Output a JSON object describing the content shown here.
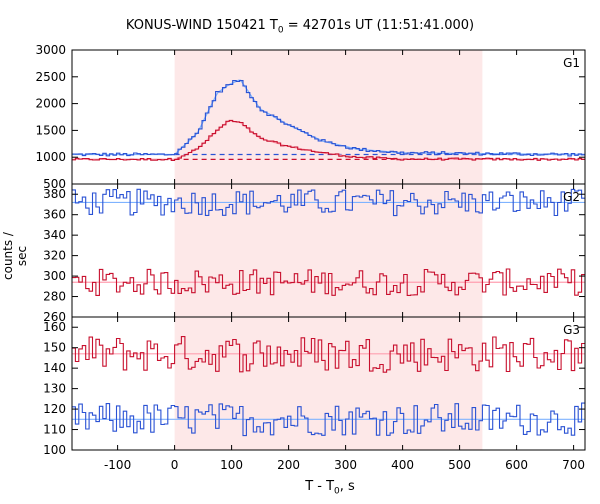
{
  "chart_data": {
    "type": "line",
    "title_main": "KONUS-WIND 150421 T",
    "title_sub": "0",
    "title_rest": " = 42701s UT (11:51:41.000)",
    "xlabel_main": "T - T",
    "xlabel_sub": "0",
    "xlabel_rest": ", s",
    "ylabel": "counts / sec",
    "xlim": [
      -180,
      720
    ],
    "xticks": [
      -100,
      0,
      100,
      200,
      300,
      400,
      500,
      600,
      700
    ],
    "highlight_interval": [
      0,
      540
    ],
    "colors": {
      "upper": "#2a52d4",
      "lower": "#c8102e",
      "highlight": "#fde8e8",
      "smooth_upper": "#7fb3ff",
      "smooth_lower": "#ff9fb0"
    },
    "panels": [
      {
        "label": "G1",
        "ylim": [
          500,
          3000
        ],
        "yticks": [
          500,
          1000,
          1500,
          2000,
          2500,
          3000
        ],
        "background_upper": 1050,
        "background_lower": 960,
        "dashed_levels": [
          1050,
          960
        ],
        "series_upper_peak": [
          [
            0,
            1050
          ],
          [
            40,
            1450
          ],
          [
            75,
            2200
          ],
          [
            95,
            2350
          ],
          [
            115,
            2450
          ],
          [
            150,
            1900
          ],
          [
            200,
            1600
          ],
          [
            260,
            1300
          ],
          [
            320,
            1150
          ],
          [
            400,
            1080
          ],
          [
            720,
            1050
          ]
        ],
        "series_lower_peak": [
          [
            0,
            960
          ],
          [
            40,
            1150
          ],
          [
            75,
            1500
          ],
          [
            95,
            1680
          ],
          [
            115,
            1650
          ],
          [
            150,
            1350
          ],
          [
            200,
            1200
          ],
          [
            260,
            1080
          ],
          [
            320,
            1000
          ],
          [
            400,
            965
          ],
          [
            720,
            960
          ]
        ]
      },
      {
        "label": "G2",
        "ylim": [
          260,
          390
        ],
        "yticks": [
          260,
          280,
          300,
          320,
          340,
          360,
          380
        ],
        "background_upper": 372,
        "background_lower": 294
      },
      {
        "label": "G3",
        "ylim": [
          100,
          165
        ],
        "yticks": [
          100,
          110,
          120,
          130,
          140,
          150,
          160
        ],
        "background_upper": 115,
        "background_lower": 147
      }
    ]
  }
}
